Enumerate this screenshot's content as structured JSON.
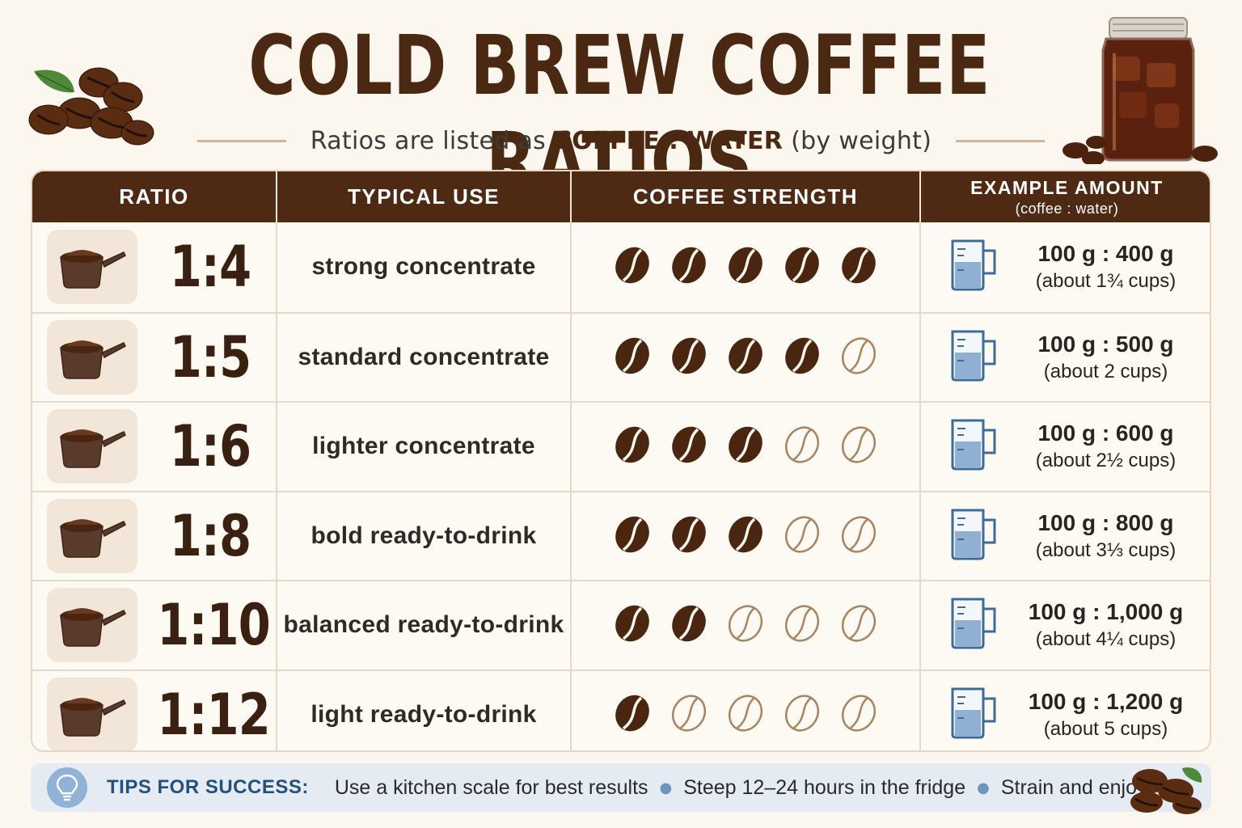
{
  "title": "COLD BREW COFFEE RATIOS",
  "subtitle": {
    "prefix": "Ratios are listed as",
    "emphasis": "COFFEE : WATER",
    "suffix": "(by weight)"
  },
  "table": {
    "headers": {
      "ratio": "RATIO",
      "use": "TYPICAL USE",
      "strength": "COFFEE STRENGTH",
      "amount": "EXAMPLE AMOUNT",
      "amount_sub": "(coffee : water)"
    },
    "rows": [
      {
        "ratio": "1:4",
        "use": "strong concentrate",
        "strength": 5,
        "amount": "100 g : 400 g",
        "cups": "(about 1¾ cups)"
      },
      {
        "ratio": "1:5",
        "use": "standard concentrate",
        "strength": 4,
        "amount": "100 g : 500 g",
        "cups": "(about 2 cups)"
      },
      {
        "ratio": "1:6",
        "use": "lighter concentrate",
        "strength": 3,
        "amount": "100 g : 600 g",
        "cups": "(about 2½ cups)"
      },
      {
        "ratio": "1:8",
        "use": "bold ready-to-drink",
        "strength": 3,
        "amount": "100 g : 800 g",
        "cups": "(about 3⅓ cups)"
      },
      {
        "ratio": "1:10",
        "use": "balanced ready-to-drink",
        "strength": 2,
        "amount": "100 g : 1,000 g",
        "cups": "(about 4¼ cups)"
      },
      {
        "ratio": "1:12",
        "use": "light ready-to-drink",
        "strength": 1,
        "amount": "100 g : 1,200 g",
        "cups": "(about 5 cups)"
      }
    ],
    "strength_max": 5
  },
  "tips": {
    "label": "TIPS FOR SUCCESS:",
    "items": [
      "Use a kitchen scale for best results",
      "Steep 12–24 hours in the fridge",
      "Strain and enjoy!"
    ]
  },
  "icons": {
    "scoop": "coffee-scoop-icon",
    "bean_filled": "coffee-bean-filled-icon",
    "bean_outline": "coffee-bean-outline-icon",
    "measuring_cup": "measuring-cup-icon",
    "lightbulb": "lightbulb-icon",
    "jar": "cold-brew-jar-illustration",
    "beans_pile": "coffee-beans-illustration"
  },
  "colors": {
    "header_bg": "#4e2a14",
    "bean_filled": "#4a2510",
    "bean_outline": "#a88460",
    "tips_bg": "#e5ebf2",
    "tips_label": "#24507c"
  }
}
